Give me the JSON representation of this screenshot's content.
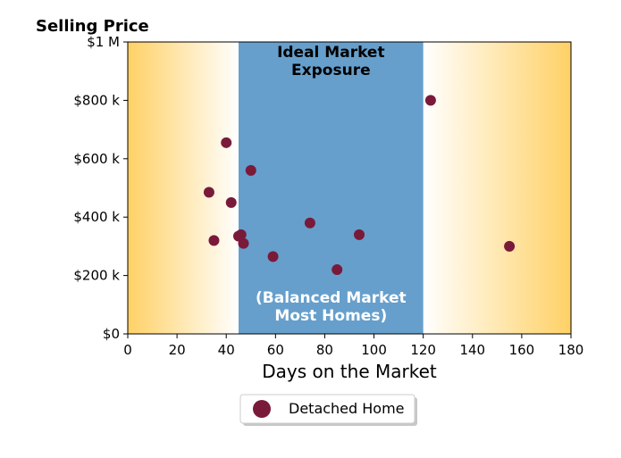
{
  "chart_data": {
    "type": "scatter",
    "ylabel": "Selling Price",
    "xlabel": "Days on the Market",
    "xlim": [
      0,
      180
    ],
    "ylim": [
      0,
      1000000
    ],
    "x_ticks": [
      0,
      20,
      40,
      60,
      80,
      100,
      120,
      140,
      160,
      180
    ],
    "x_tick_labels": [
      "0",
      "20",
      "40",
      "60",
      "80",
      "100",
      "120",
      "140",
      "160",
      "180"
    ],
    "y_ticks": [
      0,
      200000,
      400000,
      600000,
      800000,
      1000000
    ],
    "y_tick_labels": [
      "$0",
      "$200 k",
      "$400 k",
      "$600 k",
      "$800 k",
      "$1 M"
    ],
    "grid": false,
    "legend_position": "bottom-center",
    "regions": [
      {
        "kind": "gradient",
        "x": [
          0,
          45
        ],
        "color_strong": "#ffd166",
        "fade": "right"
      },
      {
        "kind": "band",
        "x": [
          45,
          120
        ],
        "color": "#669fcc"
      },
      {
        "kind": "gradient",
        "x": [
          120,
          180
        ],
        "color_strong": "#ffd166",
        "fade": "left"
      }
    ],
    "annotation_title": [
      "Ideal Market",
      "Exposure"
    ],
    "annotation_note": [
      "(Balanced Market",
      "Most Homes)"
    ],
    "series": [
      {
        "name": "Detached Home",
        "color": "#7a1a3a",
        "points": [
          {
            "x": 33,
            "y": 485000
          },
          {
            "x": 35,
            "y": 320000
          },
          {
            "x": 40,
            "y": 655000
          },
          {
            "x": 42,
            "y": 450000
          },
          {
            "x": 45,
            "y": 335000
          },
          {
            "x": 46,
            "y": 340000
          },
          {
            "x": 47,
            "y": 310000
          },
          {
            "x": 50,
            "y": 560000
          },
          {
            "x": 59,
            "y": 265000
          },
          {
            "x": 74,
            "y": 380000
          },
          {
            "x": 85,
            "y": 220000
          },
          {
            "x": 94,
            "y": 340000
          },
          {
            "x": 123,
            "y": 800000
          },
          {
            "x": 155,
            "y": 300000
          }
        ]
      }
    ]
  }
}
